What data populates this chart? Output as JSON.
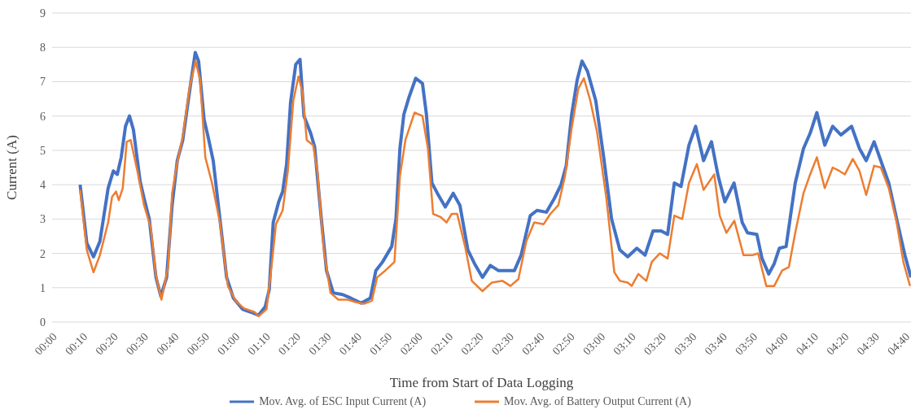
{
  "chart_data": {
    "type": "line",
    "xlabel": "Time from Start of Data Logging",
    "ylabel": "Current (A)",
    "xlim": [
      0,
      282
    ],
    "ylim": [
      0,
      9
    ],
    "yticks": [
      0,
      1,
      2,
      3,
      4,
      5,
      6,
      7,
      8,
      9
    ],
    "xticks": [
      {
        "value": 0,
        "label": "00:00"
      },
      {
        "value": 10,
        "label": "00:10"
      },
      {
        "value": 20,
        "label": "00:20"
      },
      {
        "value": 30,
        "label": "00:30"
      },
      {
        "value": 40,
        "label": "00:40"
      },
      {
        "value": 50,
        "label": "00:50"
      },
      {
        "value": 60,
        "label": "01:00"
      },
      {
        "value": 70,
        "label": "01:10"
      },
      {
        "value": 80,
        "label": "01:20"
      },
      {
        "value": 90,
        "label": "01:30"
      },
      {
        "value": 100,
        "label": "01:40"
      },
      {
        "value": 110,
        "label": "01:50"
      },
      {
        "value": 120,
        "label": "02:00"
      },
      {
        "value": 130,
        "label": "02:10"
      },
      {
        "value": 140,
        "label": "02:20"
      },
      {
        "value": 150,
        "label": "02:30"
      },
      {
        "value": 160,
        "label": "02:40"
      },
      {
        "value": 170,
        "label": "02:50"
      },
      {
        "value": 180,
        "label": "03:00"
      },
      {
        "value": 190,
        "label": "03:10"
      },
      {
        "value": 200,
        "label": "03:20"
      },
      {
        "value": 210,
        "label": "03:30"
      },
      {
        "value": 220,
        "label": "03:40"
      },
      {
        "value": 230,
        "label": "03:50"
      },
      {
        "value": 240,
        "label": "04:00"
      },
      {
        "value": 250,
        "label": "04:10"
      },
      {
        "value": 260,
        "label": "04:20"
      },
      {
        "value": 270,
        "label": "04:30"
      },
      {
        "value": 280,
        "label": "04:40"
      }
    ],
    "grid": "y",
    "legend": "bottom",
    "marker": "none",
    "line_style": "solid",
    "series": [
      {
        "name": "Mov. Avg. of ESC Input Current (A)",
        "color": "#4472c4",
        "x": [
          9.2,
          11.4,
          13.6,
          15.7,
          18.4,
          20.1,
          21.4,
          22.7,
          24.1,
          25.4,
          26.7,
          28.9,
          30.2,
          31.9,
          34.1,
          35.7,
          37.6,
          39.4,
          41.1,
          42.9,
          45.1,
          47,
          48.1,
          49.9,
          51.2,
          52.9,
          55.1,
          57.3,
          59.5,
          62.6,
          65.2,
          67.8,
          70,
          71.3,
          72.6,
          74.4,
          75.7,
          77,
          78.3,
          80,
          81.4,
          82.7,
          84.9,
          86.2,
          88.4,
          90.1,
          92.3,
          95.4,
          98,
          101.5,
          104.5,
          106.3,
          108.5,
          111.5,
          112.9,
          114.2,
          115.5,
          117.2,
          119.4,
          121.6,
          122.9,
          124.7,
          126.5,
          129.1,
          131.7,
          133.9,
          136.5,
          138.7,
          141.3,
          143.9,
          146.5,
          149.1,
          151.8,
          154,
          157,
          159.2,
          162.3,
          164.9,
          167.1,
          168.8,
          170.6,
          172.4,
          174,
          175.8,
          178.5,
          181.1,
          183.7,
          186.4,
          189,
          192,
          194.7,
          197.3,
          200,
          202.1,
          204.3,
          206.5,
          209.1,
          211.3,
          213.9,
          216.5,
          218.7,
          220.9,
          223.9,
          226.6,
          228.3,
          231.4,
          233.1,
          235.3,
          237.1,
          238.8,
          241,
          244,
          246.7,
          248.9,
          251.1,
          253.7,
          256.3,
          259,
          262.5,
          265.1,
          267.3,
          269.9,
          274.7,
          277.3,
          280,
          282
        ],
        "values": [
          4.0,
          2.3,
          1.9,
          2.35,
          3.9,
          4.4,
          4.3,
          4.8,
          5.7,
          6.0,
          5.6,
          4.1,
          3.6,
          3.0,
          1.3,
          0.75,
          1.3,
          3.4,
          4.7,
          5.3,
          6.7,
          7.85,
          7.6,
          5.9,
          5.4,
          4.7,
          3.0,
          1.3,
          0.7,
          0.37,
          0.29,
          0.2,
          0.45,
          0.95,
          2.9,
          3.5,
          3.8,
          4.6,
          6.4,
          7.5,
          7.65,
          6.0,
          5.5,
          5.1,
          3.0,
          1.5,
          0.85,
          0.8,
          0.7,
          0.55,
          0.7,
          1.5,
          1.75,
          2.2,
          3.0,
          5.05,
          6.05,
          6.55,
          7.1,
          6.95,
          6.05,
          4.05,
          3.75,
          3.35,
          3.75,
          3.4,
          2.1,
          1.7,
          1.3,
          1.65,
          1.5,
          1.5,
          1.5,
          1.95,
          3.1,
          3.25,
          3.2,
          3.6,
          4.0,
          4.55,
          6.05,
          7.05,
          7.6,
          7.3,
          6.45,
          4.8,
          3.0,
          2.1,
          1.9,
          2.15,
          1.95,
          2.65,
          2.65,
          2.55,
          4.05,
          3.95,
          5.15,
          5.7,
          4.7,
          5.25,
          4.25,
          3.5,
          4.05,
          2.9,
          2.6,
          2.55,
          1.85,
          1.4,
          1.7,
          2.15,
          2.2,
          4.05,
          5.05,
          5.5,
          6.1,
          5.15,
          5.7,
          5.45,
          5.7,
          5.05,
          4.7,
          5.25,
          4.05,
          3.0,
          1.95,
          1.3
        ]
      },
      {
        "name": "Mov. Avg. of Battery Output Current (A)",
        "color": "#ed7d31",
        "x": [
          9.2,
          11.4,
          13.6,
          15.7,
          18.4,
          19.7,
          21,
          21.9,
          23.2,
          24.5,
          25.8,
          28,
          30.2,
          32.4,
          34.1,
          35.9,
          38.1,
          39.4,
          41.1,
          42.9,
          45.1,
          47.1,
          48.6,
          50.3,
          52.5,
          55.1,
          57.7,
          60.4,
          63,
          66.5,
          67.8,
          70.4,
          72.2,
          73.5,
          75.7,
          77.4,
          79.2,
          80.9,
          82.2,
          83.6,
          85.7,
          87.1,
          89.2,
          91.4,
          94,
          97.1,
          99.7,
          102.4,
          105,
          106.7,
          109.4,
          112.4,
          114.2,
          116,
          119,
          121.6,
          123.4,
          125.1,
          127.7,
          129.5,
          131.2,
          133,
          135.6,
          137.8,
          141.3,
          144.4,
          147.9,
          150.5,
          153.1,
          155.7,
          158.3,
          161.4,
          163.6,
          166.2,
          168.4,
          170.6,
          172.8,
          174.6,
          176.7,
          178.9,
          182,
          184.6,
          186.4,
          189,
          190.3,
          192.5,
          195.1,
          196.9,
          199.5,
          202.1,
          204.3,
          206.9,
          209.1,
          211.7,
          213.9,
          217.4,
          219.2,
          221.4,
          224,
          227,
          230.1,
          231.8,
          234.5,
          237.1,
          239.7,
          241.9,
          244,
          246.7,
          248.9,
          251.1,
          253.7,
          256.3,
          258.5,
          260.3,
          262.9,
          265.1,
          267.3,
          269.9,
          272.1,
          274.7,
          277.3,
          279.5,
          281.7
        ],
        "values": [
          3.85,
          2.1,
          1.45,
          1.95,
          2.9,
          3.65,
          3.8,
          3.55,
          3.9,
          5.25,
          5.3,
          4.4,
          3.4,
          2.75,
          1.35,
          0.65,
          1.6,
          3.75,
          4.65,
          5.4,
          6.8,
          7.6,
          7.05,
          4.8,
          4.05,
          2.9,
          1.05,
          0.6,
          0.4,
          0.29,
          0.17,
          0.37,
          1.75,
          2.85,
          3.25,
          4.4,
          6.45,
          7.15,
          6.7,
          5.3,
          5.15,
          4.4,
          2.1,
          0.85,
          0.65,
          0.65,
          0.58,
          0.53,
          0.62,
          1.3,
          1.5,
          1.75,
          4.25,
          5.3,
          6.1,
          6.0,
          5.05,
          3.15,
          3.05,
          2.9,
          3.15,
          3.15,
          2.2,
          1.2,
          0.9,
          1.15,
          1.2,
          1.05,
          1.25,
          2.35,
          2.9,
          2.85,
          3.15,
          3.4,
          4.25,
          5.65,
          6.8,
          7.1,
          6.45,
          5.55,
          3.6,
          1.45,
          1.2,
          1.15,
          1.05,
          1.4,
          1.2,
          1.75,
          2.0,
          1.85,
          3.1,
          3.0,
          4.05,
          4.6,
          3.85,
          4.3,
          3.1,
          2.6,
          2.95,
          1.95,
          1.95,
          2.0,
          1.05,
          1.05,
          1.5,
          1.6,
          2.6,
          3.75,
          4.3,
          4.8,
          3.9,
          4.5,
          4.4,
          4.3,
          4.75,
          4.4,
          3.7,
          4.55,
          4.5,
          3.9,
          2.9,
          1.75,
          1.05
        ]
      }
    ]
  }
}
